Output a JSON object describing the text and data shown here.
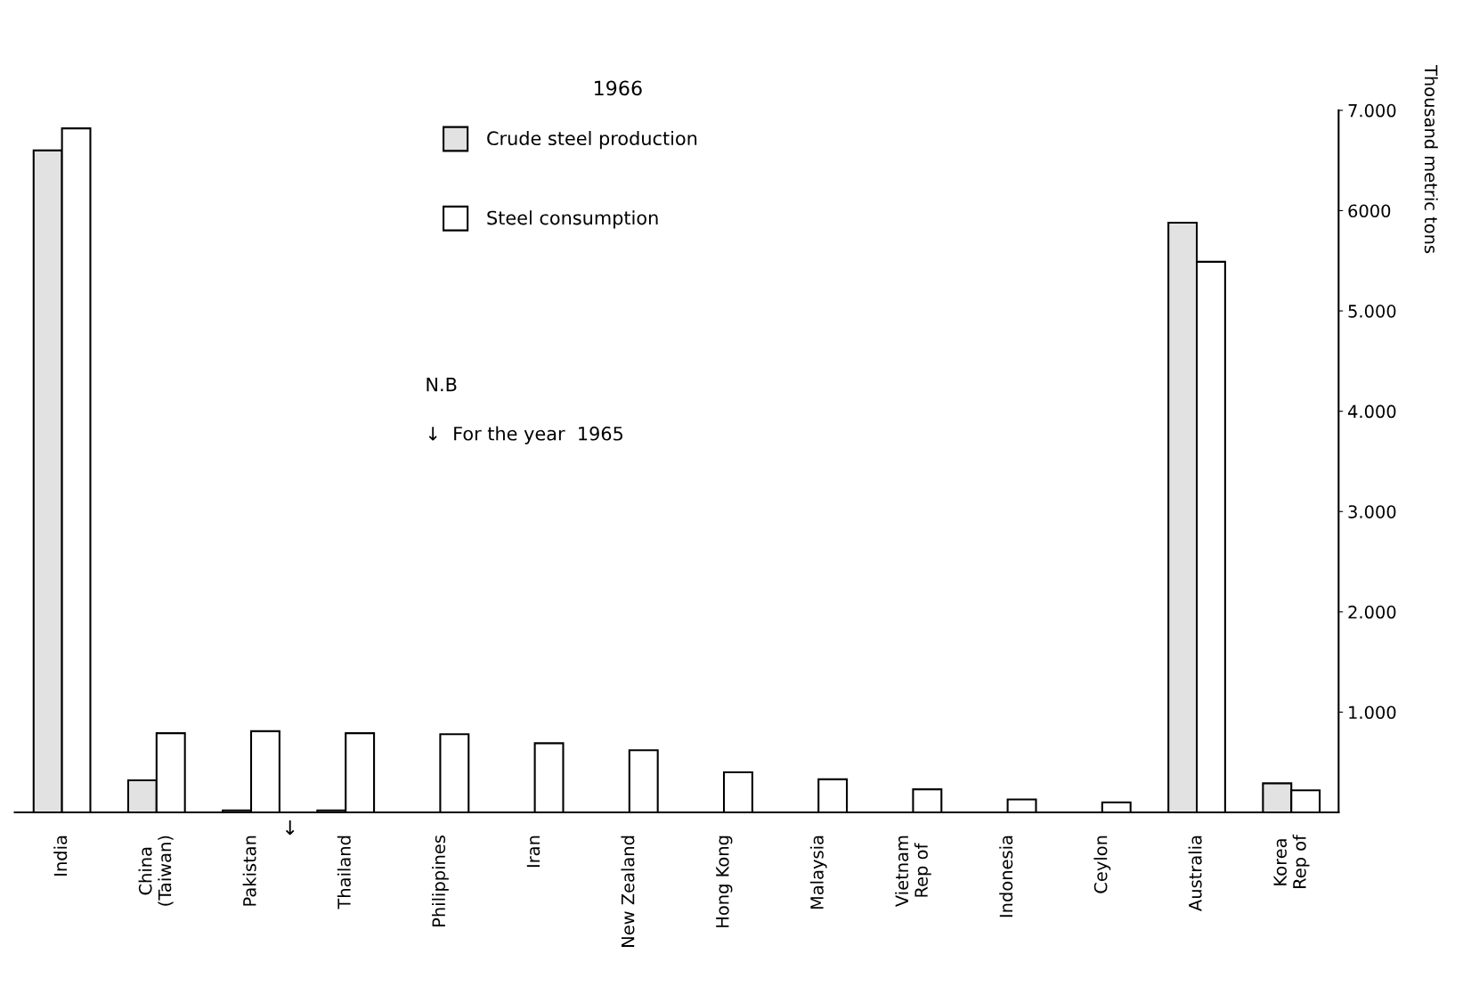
{
  "chart_data": {
    "type": "bar",
    "title": "1966",
    "ylabel": "Thousand metric tons",
    "categories": [
      "India",
      "China\n(Taiwan)",
      "Pakistan",
      "Thailand",
      "Philippines",
      "Iran",
      "New Zealand",
      "Hong Kong",
      "Malaysia",
      "Vietnam\nRep of",
      "Indonesia",
      "Ceylon",
      "Australia",
      "Korea\nRep of"
    ],
    "series": [
      {
        "name": "Crude steel production",
        "color": "#e2e2e2",
        "values": [
          6600,
          320,
          20,
          20,
          null,
          null,
          null,
          null,
          null,
          null,
          null,
          null,
          5880,
          290
        ]
      },
      {
        "name": "Steel consumption",
        "color": "#ffffff",
        "values": [
          6820,
          790,
          810,
          790,
          780,
          690,
          620,
          400,
          330,
          230,
          130,
          100,
          5490,
          220
        ]
      }
    ],
    "ylim": [
      0,
      7000
    ],
    "yticks": [
      {
        "value": 1000,
        "label": "1.000"
      },
      {
        "value": 2000,
        "label": "2.000"
      },
      {
        "value": 3000,
        "label": "3.000"
      },
      {
        "value": 4000,
        "label": "4.000"
      },
      {
        "value": 5000,
        "label": "5.000"
      },
      {
        "value": 6000,
        "label": "6000"
      },
      {
        "value": 7000,
        "label": "7.000"
      }
    ],
    "annotations": [
      "N.B",
      "↓  For the year  1965",
      {
        "text": "↓",
        "x": "Thailand",
        "y": 0
      }
    ],
    "legend": "top",
    "grid": false
  }
}
